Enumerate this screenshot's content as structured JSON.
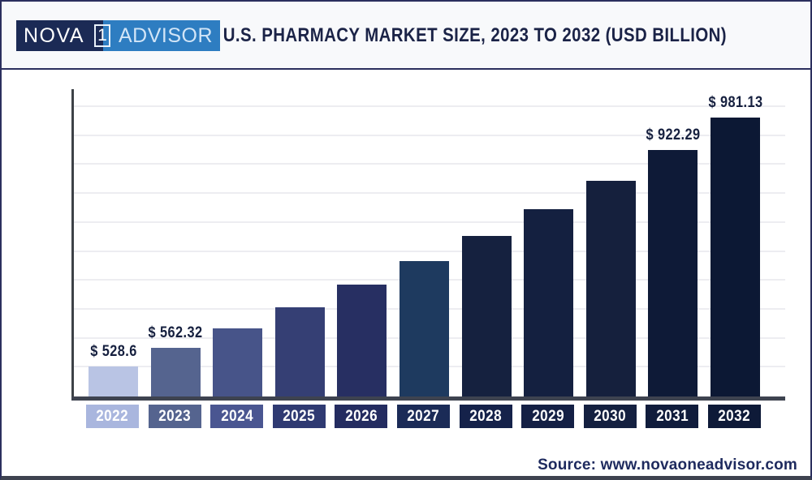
{
  "header": {
    "logo": {
      "part1": "NOVA",
      "middle": "1",
      "part2": "ADVISOR"
    },
    "title": "U.S. PHARMACY MARKET SIZE, 2023 TO 2032 (USD BILLION)"
  },
  "footer": {
    "source": "Source: www.novaoneadvisor.com"
  },
  "colors": {
    "page_bg": "#ffffff",
    "header_bg": "#f8f9fb",
    "frame_border": "#2b2f5e",
    "bottom_bar": "#3e4350",
    "divider": "#2b2f5e",
    "title_text": "#1b2347",
    "logo_dark_bg": "#1b2a55",
    "logo_blue_bg": "#2e7dc1",
    "logo_text": "#ffffff",
    "logo_advisor_text": "#d2e5f7",
    "axis_line": "#3d4247",
    "baseline": "#3e4350",
    "gridline": "#ededf1",
    "value_label_text": "#16203f",
    "year_label_text": "#ffffff",
    "source_text": "#1e2a5e"
  },
  "chart_data": {
    "type": "bar",
    "title": "U.S. PHARMACY MARKET SIZE, 2023 TO 2032 (USD BILLION)",
    "unit": "USD Billion",
    "categories": [
      "2022",
      "2023",
      "2024",
      "2025",
      "2026",
      "2027",
      "2028",
      "2029",
      "2030",
      "2031",
      "2032"
    ],
    "values": [
      528.6,
      562.32,
      598.2,
      636.3,
      676.9,
      720.1,
      766.0,
      814.9,
      866.9,
      922.29,
      981.13
    ],
    "value_labels": [
      "$ 528.6",
      "$ 562.32",
      "",
      "",
      "",
      "",
      "",
      "",
      "",
      "$ 922.29",
      "$ 981.13"
    ],
    "bar_colors": [
      "#b9c4e4",
      "#55648f",
      "#475489",
      "#353f74",
      "#272f62",
      "#1e3a5f",
      "#15213f",
      "#142040",
      "#15203d",
      "#0e1a37",
      "#0c1834"
    ],
    "year_box_colors": [
      "#a9b6de",
      "#55648f",
      "#4a5691",
      "#2f3a72",
      "#242c60",
      "#1b2b57",
      "#15224a",
      "#142045",
      "#142040",
      "#101c3c",
      "#0e1a38"
    ],
    "ylim": [
      474,
      1036
    ],
    "grid": true,
    "gridline_count": 10,
    "legend": "none",
    "xlabel": "",
    "ylabel": ""
  }
}
